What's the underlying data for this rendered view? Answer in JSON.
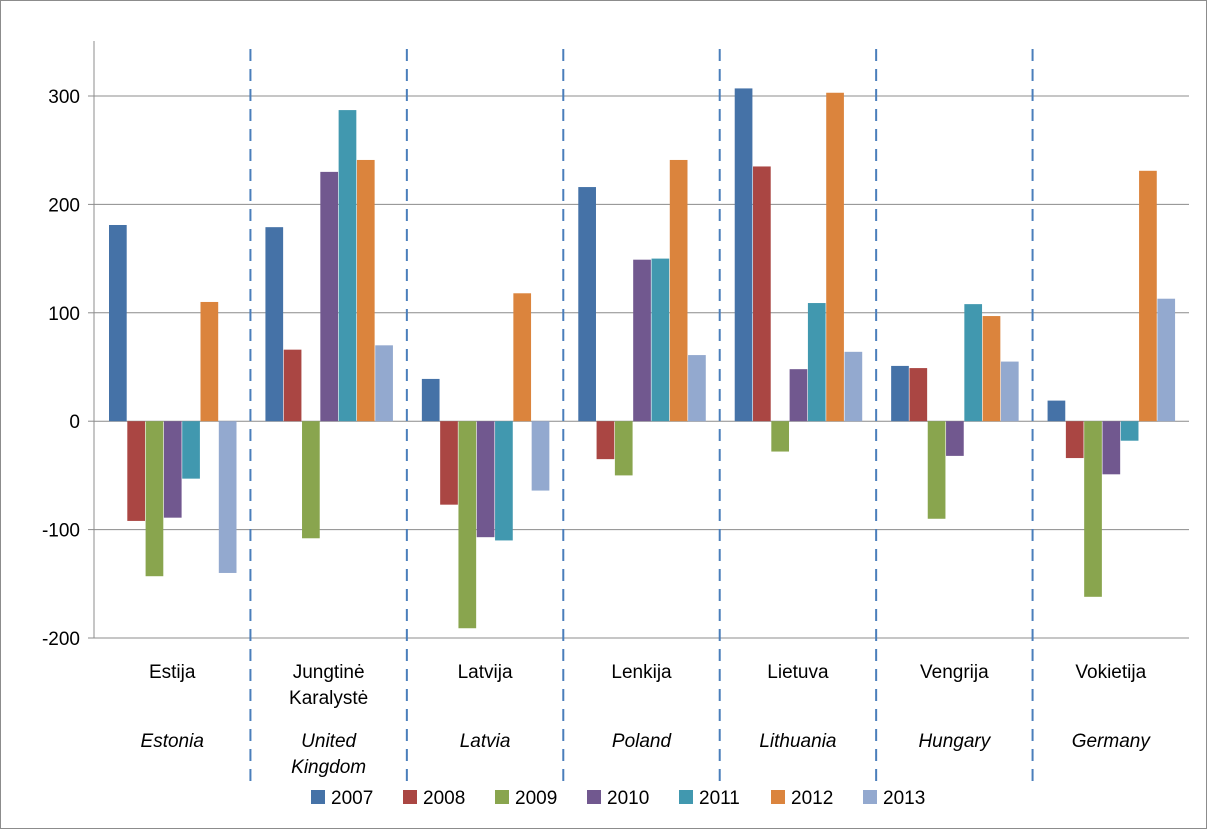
{
  "chart_data": {
    "type": "bar",
    "title": "",
    "xlabel": "",
    "ylabel": "",
    "ylim": [
      -200,
      300
    ],
    "yticks": [
      -200,
      -100,
      0,
      100,
      200,
      300
    ],
    "grid": true,
    "legend_position": "bottom",
    "categories": [
      "Estija",
      "Jungtinė Karalystė",
      "Latvija",
      "Lenkija",
      "Lietuva",
      "Vengrija",
      "Vokietija"
    ],
    "categories_en": [
      "Estonia",
      "United Kingdom",
      "Latvia",
      "Poland",
      "Lithuania",
      "Hungary",
      "Germany"
    ],
    "series": [
      {
        "name": "2007",
        "color": "#4572a7",
        "values": [
          181,
          179,
          39,
          216,
          307,
          51,
          19
        ]
      },
      {
        "name": "2008",
        "color": "#aa4643",
        "values": [
          -92,
          66,
          -77,
          -35,
          235,
          49,
          -34
        ]
      },
      {
        "name": "2009",
        "color": "#89a54e",
        "values": [
          -143,
          -108,
          -191,
          -50,
          -28,
          -90,
          -162
        ]
      },
      {
        "name": "2010",
        "color": "#71588f",
        "values": [
          -89,
          230,
          -107,
          149,
          48,
          -32,
          -49
        ]
      },
      {
        "name": "2011",
        "color": "#4198af",
        "values": [
          -53,
          287,
          -110,
          150,
          109,
          108,
          -18
        ]
      },
      {
        "name": "2012",
        "color": "#db843d",
        "values": [
          110,
          241,
          118,
          241,
          303,
          97,
          231
        ]
      },
      {
        "name": "2013",
        "color": "#93a9cf",
        "values": [
          -140,
          70,
          -64,
          61,
          64,
          55,
          113
        ]
      }
    ]
  }
}
